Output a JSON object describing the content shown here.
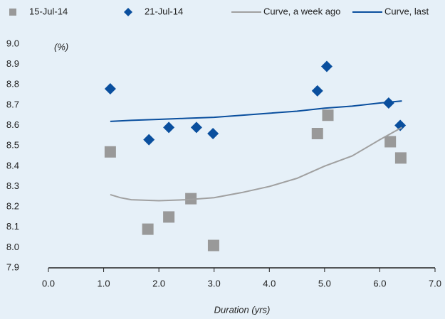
{
  "chart_data": {
    "type": "scatter",
    "annotations": [
      "(%)"
    ],
    "x_label": "Duration (yrs)",
    "xlim": [
      0,
      7
    ],
    "xticks": [
      {
        "value": 0,
        "label": "0.0"
      },
      {
        "value": 1,
        "label": "1.0"
      },
      {
        "value": 2,
        "label": "2.0"
      },
      {
        "value": 3,
        "label": "3.0"
      },
      {
        "value": 4,
        "label": "4.0"
      },
      {
        "value": 5,
        "label": "5.0"
      },
      {
        "value": 6,
        "label": "6.0"
      },
      {
        "value": 7,
        "label": "7.0"
      }
    ],
    "ylim": [
      7.9,
      9.0
    ],
    "yticks": [
      7.9,
      {
        "value": 8.0,
        "label": "8.0"
      },
      8.1,
      8.2,
      8.3,
      8.4,
      8.5,
      8.6,
      8.7,
      8.8,
      8.9,
      {
        "value": 9.0,
        "label": "9.0"
      }
    ],
    "grid": false,
    "series": [
      {
        "name": "15-Jul-14",
        "style": "square",
        "color": "#999999",
        "x": [
          1.12,
          1.8,
          2.18,
          2.58,
          2.99,
          4.87,
          5.06,
          6.19,
          6.38
        ],
        "values": [
          8.47,
          8.09,
          8.15,
          8.24,
          8.01,
          8.56,
          8.65,
          8.52,
          8.44
        ]
      },
      {
        "name": "21-Jul-14",
        "style": "diamond",
        "color": "#0a4f9e",
        "x": [
          1.12,
          1.82,
          2.18,
          2.68,
          2.98,
          4.87,
          5.04,
          6.16,
          6.37
        ],
        "values": [
          8.78,
          8.53,
          8.59,
          8.59,
          8.56,
          8.77,
          8.89,
          8.71,
          8.6
        ]
      },
      {
        "name": "Curve, a week ago",
        "style": "line",
        "color": "#a0a0a0",
        "x": [
          1.12,
          1.3,
          1.5,
          2.0,
          2.5,
          3.0,
          3.5,
          4.0,
          4.5,
          5.0,
          5.5,
          6.0,
          6.4
        ],
        "values": [
          8.26,
          8.245,
          8.235,
          8.23,
          8.235,
          8.245,
          8.27,
          8.3,
          8.34,
          8.4,
          8.45,
          8.53,
          8.59
        ]
      },
      {
        "name": "Curve, last",
        "style": "line",
        "color": "#0a4f9e",
        "x": [
          1.12,
          1.5,
          2.0,
          2.5,
          3.0,
          3.5,
          4.0,
          4.5,
          5.0,
          5.5,
          6.0,
          6.4
        ],
        "values": [
          8.62,
          8.625,
          8.63,
          8.635,
          8.64,
          8.65,
          8.66,
          8.67,
          8.685,
          8.695,
          8.71,
          8.72
        ]
      }
    ]
  }
}
